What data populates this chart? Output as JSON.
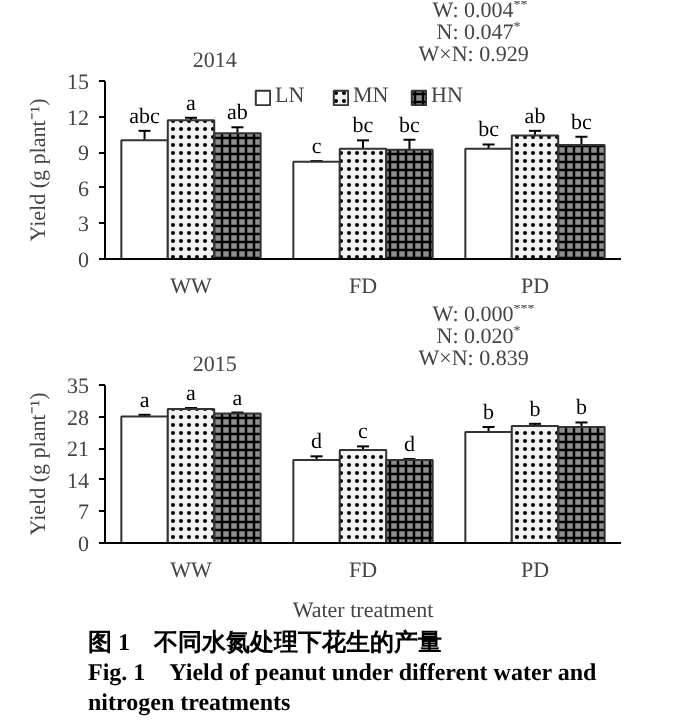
{
  "chart_data": [
    {
      "type": "bar",
      "title": "2014",
      "ylabel": "Yield (g plant⁻¹)",
      "categories": [
        "WW",
        "FD",
        "PD"
      ],
      "series": [
        {
          "name": "LN",
          "color": "#ffffff",
          "values": [
            10.0,
            8.2,
            9.3
          ],
          "errors": [
            0.8,
            0.05,
            0.35
          ]
        },
        {
          "name": "MN",
          "color": "#f2f2f2",
          "values": [
            11.7,
            9.3,
            10.4
          ],
          "errors": [
            0.2,
            0.7,
            0.4
          ]
        },
        {
          "name": "HN",
          "color": "#8c8c8c",
          "values": [
            10.6,
            9.2,
            9.6
          ],
          "errors": [
            0.5,
            0.85,
            0.7
          ]
        }
      ],
      "ylim": [
        0,
        15
      ],
      "yticks": [
        0,
        3,
        6,
        9,
        12,
        15
      ],
      "legend": "top",
      "annotations": [
        "W: 0.004$^{**}$",
        "N: 0.047$^{*}$",
        "W×N: 0.929",
        "abc",
        "a",
        "ab",
        "c",
        "bc",
        "bc",
        "bc",
        "ab",
        "bc"
      ]
    },
    {
      "type": "bar",
      "title": "2015",
      "ylabel": "Yield (g plant⁻¹)",
      "xlabel": "Water treatment",
      "categories": [
        "WW",
        "FD",
        "PD"
      ],
      "series": [
        {
          "color": "#ffffff",
          "values": [
            28.0,
            18.4,
            24.6
          ],
          "errors": [
            0.4,
            0.8,
            1.1
          ]
        },
        {
          "color": "#f2f2f2",
          "values": [
            29.7,
            20.6,
            25.9
          ],
          "errors": [
            0.2,
            0.8,
            0.5
          ]
        },
        {
          "color": "#8c8c8c",
          "values": [
            28.7,
            18.4,
            25.7
          ],
          "errors": [
            0.2,
            0.2,
            1.0
          ]
        }
      ],
      "ylim": [
        0,
        35
      ],
      "yticks": [
        0,
        7,
        14,
        21,
        28,
        35
      ],
      "annotations": [
        "W: 0.000$^{***}$",
        "N: 0.020$^{*}$",
        "W×N: 0.839",
        "a",
        "a",
        "a",
        "d",
        "c",
        "d",
        "b",
        "b",
        "b",
        "图 1　不同水氮处理下花生的产量",
        "Fig. 1　Yield of peanut under different water and nitrogen treatments"
      ]
    }
  ]
}
